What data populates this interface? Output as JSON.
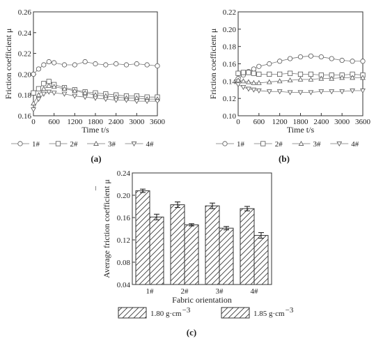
{
  "figure": {
    "panels": [
      {
        "id": "a",
        "caption": "(a)"
      },
      {
        "id": "b",
        "caption": "(b)"
      },
      {
        "id": "c",
        "caption": "(c)"
      }
    ]
  },
  "chart_data": [
    {
      "panel": "(a)",
      "type": "line",
      "xlabel": "Time t/s",
      "ylabel": "Friction coefficient μ",
      "xlim": [
        0,
        3600
      ],
      "ylim": [
        0.16,
        0.26
      ],
      "xticks": [
        0,
        600,
        1200,
        1800,
        2400,
        3000,
        3600
      ],
      "yticks": [
        0.16,
        0.18,
        0.2,
        0.22,
        0.24,
        0.26
      ],
      "legend_position": "bottom",
      "series": [
        {
          "name": "1#",
          "marker": "circle",
          "x": [
            0,
            150,
            300,
            450,
            600,
            900,
            1200,
            1500,
            1800,
            2100,
            2400,
            2700,
            3000,
            3300,
            3600
          ],
          "y": [
            0.2,
            0.205,
            0.209,
            0.212,
            0.211,
            0.209,
            0.209,
            0.212,
            0.21,
            0.209,
            0.21,
            0.209,
            0.21,
            0.209,
            0.208
          ]
        },
        {
          "name": "2#",
          "marker": "square",
          "x": [
            0,
            150,
            300,
            450,
            600,
            900,
            1200,
            1500,
            1800,
            2100,
            2400,
            2700,
            3000,
            3300,
            3600
          ],
          "y": [
            0.182,
            0.186,
            0.191,
            0.193,
            0.19,
            0.187,
            0.185,
            0.183,
            0.182,
            0.181,
            0.18,
            0.179,
            0.179,
            0.178,
            0.178
          ]
        },
        {
          "name": "3#",
          "marker": "triangle-up",
          "x": [
            0,
            150,
            300,
            450,
            600,
            900,
            1200,
            1500,
            1800,
            2100,
            2400,
            2700,
            3000,
            3300,
            3600
          ],
          "y": [
            0.172,
            0.18,
            0.186,
            0.189,
            0.188,
            0.186,
            0.184,
            0.182,
            0.18,
            0.179,
            0.178,
            0.177,
            0.177,
            0.176,
            0.176
          ]
        },
        {
          "name": "4#",
          "marker": "triangle-down",
          "x": [
            0,
            150,
            300,
            450,
            600,
            900,
            1200,
            1500,
            1800,
            2100,
            2400,
            2700,
            3000,
            3300,
            3600
          ],
          "y": [
            0.166,
            0.176,
            0.181,
            0.183,
            0.182,
            0.181,
            0.179,
            0.178,
            0.177,
            0.176,
            0.175,
            0.175,
            0.174,
            0.174,
            0.174
          ]
        }
      ]
    },
    {
      "panel": "(b)",
      "type": "line",
      "xlabel": "Time t/s",
      "ylabel": "Friction coefficient μ",
      "xlim": [
        0,
        3600
      ],
      "ylim": [
        0.1,
        0.22
      ],
      "xticks": [
        0,
        600,
        1200,
        1800,
        2400,
        3000,
        3600
      ],
      "yticks": [
        0.1,
        0.12,
        0.14,
        0.16,
        0.18,
        0.2,
        0.22
      ],
      "legend_position": "bottom",
      "series": [
        {
          "name": "1#",
          "marker": "circle",
          "x": [
            0,
            150,
            300,
            450,
            600,
            900,
            1200,
            1500,
            1800,
            2100,
            2400,
            2700,
            3000,
            3300,
            3600
          ],
          "y": [
            0.143,
            0.147,
            0.151,
            0.154,
            0.157,
            0.16,
            0.163,
            0.166,
            0.168,
            0.169,
            0.168,
            0.166,
            0.164,
            0.163,
            0.163
          ]
        },
        {
          "name": "2#",
          "marker": "square",
          "x": [
            0,
            150,
            300,
            450,
            600,
            900,
            1200,
            1500,
            1800,
            2100,
            2400,
            2700,
            3000,
            3300,
            3600
          ],
          "y": [
            0.149,
            0.15,
            0.15,
            0.149,
            0.148,
            0.148,
            0.148,
            0.149,
            0.148,
            0.148,
            0.147,
            0.147,
            0.147,
            0.148,
            0.147
          ]
        },
        {
          "name": "3#",
          "marker": "triangle-up",
          "x": [
            0,
            150,
            300,
            450,
            600,
            900,
            1200,
            1500,
            1800,
            2100,
            2400,
            2700,
            3000,
            3300,
            3600
          ],
          "y": [
            0.141,
            0.14,
            0.139,
            0.138,
            0.138,
            0.139,
            0.14,
            0.141,
            0.142,
            0.142,
            0.143,
            0.143,
            0.144,
            0.144,
            0.144
          ]
        },
        {
          "name": "4#",
          "marker": "triangle-down",
          "x": [
            0,
            150,
            300,
            450,
            600,
            900,
            1200,
            1500,
            1800,
            2100,
            2400,
            2700,
            3000,
            3300,
            3600
          ],
          "y": [
            0.136,
            0.133,
            0.131,
            0.13,
            0.129,
            0.128,
            0.128,
            0.127,
            0.127,
            0.127,
            0.128,
            0.128,
            0.128,
            0.129,
            0.129
          ]
        }
      ]
    },
    {
      "panel": "(c)",
      "type": "bar",
      "xlabel": "Fabric orientation",
      "ylabel": "Average friction coefficient μ",
      "ylabel_accent": "¯",
      "ylim": [
        0.04,
        0.24
      ],
      "yticks": [
        0.04,
        0.08,
        0.12,
        0.16,
        0.2,
        0.24
      ],
      "categories": [
        "1#",
        "2#",
        "3#",
        "4#"
      ],
      "legend_position": "bottom",
      "series": [
        {
          "name": "1.80 g·cm",
          "unit_exponent": "−3",
          "hatch": "diagonal",
          "values": [
            0.208,
            0.183,
            0.181,
            0.176
          ],
          "errors": [
            0.003,
            0.005,
            0.005,
            0.004
          ]
        },
        {
          "name": "1.85 g·cm",
          "unit_exponent": "−3",
          "hatch": "diagonal",
          "values": [
            0.161,
            0.147,
            0.141,
            0.128
          ],
          "errors": [
            0.005,
            0.002,
            0.003,
            0.005
          ]
        }
      ]
    }
  ]
}
